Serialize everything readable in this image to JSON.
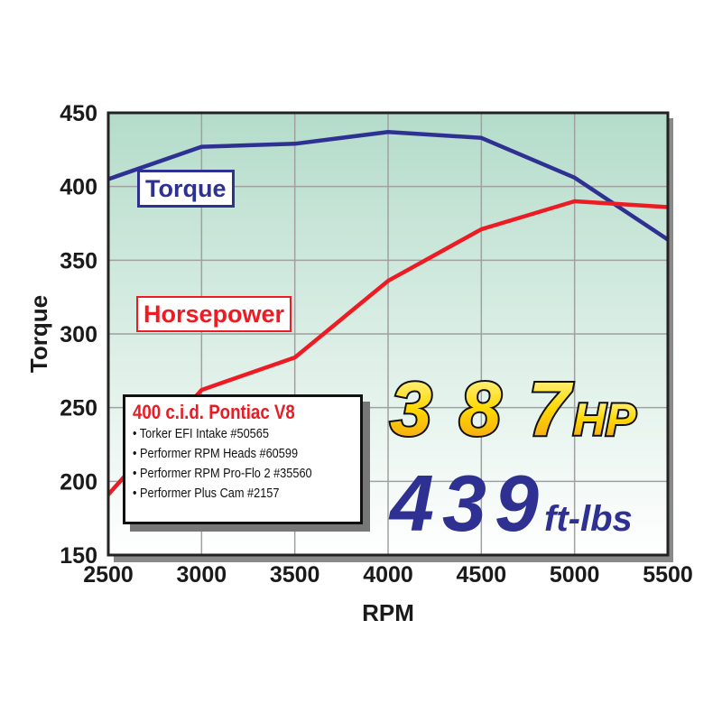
{
  "chart_data": {
    "type": "line",
    "xlabel": "RPM",
    "ylabel": "Torque",
    "xlim": [
      2500,
      5500
    ],
    "ylim": [
      150,
      450
    ],
    "x_ticks": [
      2500,
      3000,
      3500,
      4000,
      4500,
      5000,
      5500
    ],
    "y_ticks": [
      150,
      200,
      250,
      300,
      350,
      400,
      450
    ],
    "grid": true,
    "x": [
      2500,
      3000,
      3500,
      4000,
      4500,
      5000,
      5500
    ],
    "series": [
      {
        "name": "Torque",
        "color": "#2e3192",
        "values": [
          405,
          427,
          429,
          437,
          433,
          406,
          364
        ]
      },
      {
        "name": "Horsepower",
        "color": "#ed1c24",
        "values": [
          191,
          262,
          284,
          336,
          371,
          390,
          386
        ]
      }
    ]
  },
  "info": {
    "title": "400 c.i.d. Pontiac V8",
    "items": [
      "Torker EFI Intake #50565",
      "Performer RPM Heads #60599",
      "Performer RPM Pro-Flo 2 #35560",
      "Performer Plus Cam #2157"
    ]
  },
  "callout": {
    "hp_value": "387",
    "hp_unit": "HP",
    "tq_value": "439",
    "tq_unit": "ft-lbs"
  },
  "colors": {
    "plot_bg_top": "#b4dcca",
    "plot_bg_bottom": "#ffffff",
    "hp_text": "#ffd21e",
    "tq_text": "#2e3192"
  }
}
